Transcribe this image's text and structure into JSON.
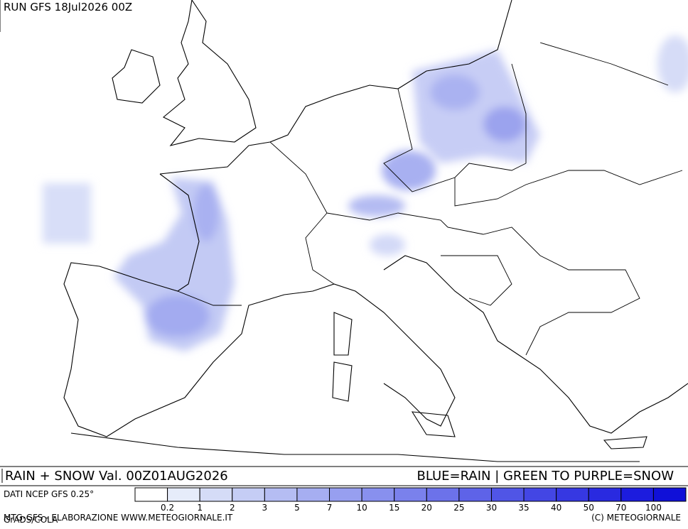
{
  "header": {
    "run": "RUN GFS 18Jul2026 00Z"
  },
  "footer": {
    "title": "RAIN + SNOW Val. 00Z01AUG2026",
    "key": "BLUE=RAIN | GREEN TO PURPLE=SNOW",
    "source": "DATI NCEP GFS 0.25°",
    "credit": "MTG-GFS - ELABORAZIONE WWW.METEOGIORNALE.IT",
    "software": "GrADS/COLA",
    "copyright": "(C) METEOGIORNALE"
  },
  "legend": {
    "labels": [
      "0.2",
      "1",
      "2",
      "3",
      "5",
      "7",
      "10",
      "15",
      "20",
      "25",
      "30",
      "35",
      "40",
      "50",
      "70",
      "100"
    ],
    "colors": [
      "#ffffff",
      "#e6ecfa",
      "#d5dcf7",
      "#c5cdf5",
      "#b5bdf3",
      "#a6aef1",
      "#979ff0",
      "#8890ee",
      "#7a81ec",
      "#6c72ea",
      "#5e63e8",
      "#5055e6",
      "#4346e4",
      "#3638e2",
      "#292ae0",
      "#1c1cde",
      "#1010d8"
    ]
  }
}
